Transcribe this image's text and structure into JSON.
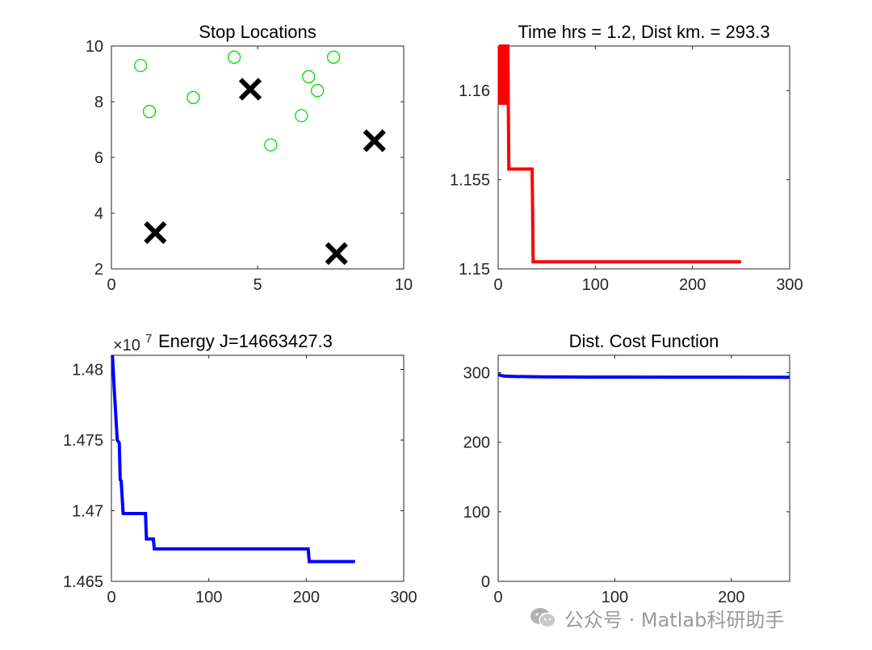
{
  "chart_data": [
    {
      "id": "stops",
      "type": "scatter",
      "title": "Stop Locations",
      "xlim": [
        0,
        10
      ],
      "ylim": [
        2,
        10
      ],
      "xticks": [
        0,
        5,
        10
      ],
      "yticks": [
        2,
        4,
        6,
        8,
        10
      ],
      "series": [
        {
          "name": "stops",
          "marker": "circle",
          "color": "#00dd00",
          "points": [
            [
              1.0,
              9.3
            ],
            [
              1.3,
              7.65
            ],
            [
              2.8,
              8.15
            ],
            [
              4.2,
              9.6
            ],
            [
              5.45,
              6.45
            ],
            [
              6.5,
              7.5
            ],
            [
              6.75,
              8.9
            ],
            [
              7.05,
              8.4
            ],
            [
              7.6,
              9.6
            ]
          ]
        },
        {
          "name": "depots",
          "marker": "x",
          "color": "#000000",
          "points": [
            [
              1.5,
              3.3
            ],
            [
              4.75,
              8.45
            ],
            [
              9.0,
              6.6
            ],
            [
              7.7,
              2.55
            ]
          ]
        }
      ]
    },
    {
      "id": "time",
      "type": "line",
      "title": "Time hrs = 1.2, Dist km. = 293.3",
      "xlim": [
        0,
        300
      ],
      "ylim": [
        1.15,
        1.1625
      ],
      "xticks": [
        0,
        100,
        200,
        300
      ],
      "yticks": [
        1.15,
        1.155,
        1.16
      ],
      "ytick_labels": [
        "1.15",
        "1.155",
        "1.16"
      ],
      "series": [
        {
          "name": "time",
          "color": "#ff0000",
          "x": [
            1,
            10,
            11,
            35,
            36,
            250
          ],
          "y": [
            1.1625,
            1.1625,
            1.1556,
            1.1556,
            1.1504,
            1.1504
          ]
        }
      ]
    },
    {
      "id": "energy",
      "type": "line",
      "title": "Energy J=14663427.3",
      "exponent": "×10",
      "exponent_power": "7",
      "xlim": [
        0,
        300
      ],
      "ylim": [
        1.465,
        1.481
      ],
      "xticks": [
        0,
        100,
        200,
        300
      ],
      "yticks": [
        1.465,
        1.47,
        1.475,
        1.48
      ],
      "ytick_labels": [
        "1.465",
        "1.47",
        "1.475",
        "1.48"
      ],
      "series": [
        {
          "name": "energy",
          "color": "#0000ff",
          "x": [
            1,
            3,
            6,
            8,
            9,
            10,
            12,
            35,
            36,
            43,
            44,
            202,
            203,
            250
          ],
          "y": [
            1.481,
            1.4785,
            1.475,
            1.4748,
            1.4722,
            1.4721,
            1.4698,
            1.4698,
            1.468,
            1.468,
            1.4673,
            1.4673,
            1.4664,
            1.4664
          ]
        }
      ]
    },
    {
      "id": "dist",
      "type": "line",
      "title": "Dist. Cost Function",
      "xlim": [
        0,
        250
      ],
      "ylim": [
        0,
        325
      ],
      "xticks": [
        0,
        100,
        200
      ],
      "yticks": [
        0,
        100,
        200,
        300
      ],
      "series": [
        {
          "name": "distance",
          "color": "#0000ff",
          "x": [
            0,
            5,
            15,
            40,
            80,
            150,
            250
          ],
          "y": [
            297,
            295,
            294.5,
            294,
            293.7,
            293.5,
            293.3
          ]
        }
      ]
    }
  ],
  "watermark": {
    "text": "公众号 · Matlab科研助手",
    "icon": "wechat-icon"
  }
}
